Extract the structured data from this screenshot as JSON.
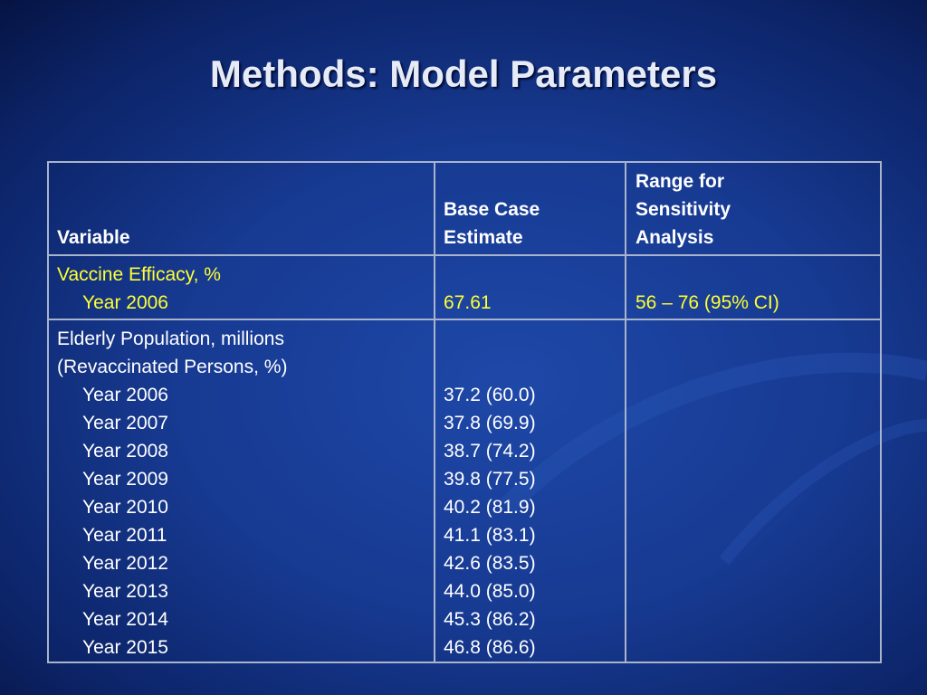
{
  "title": "Methods: Model Parameters",
  "table": {
    "header": [
      {
        "lines": [
          "Variable"
        ]
      },
      {
        "lines": [
          "Base Case",
          "Estimate"
        ]
      },
      {
        "lines": [
          "Range for",
          "Sensitivity",
          "Analysis"
        ]
      }
    ],
    "sections": [
      {
        "heading": [
          "Vaccine Efficacy, %"
        ],
        "rows": [
          {
            "label": "Year 2006",
            "estimate": "67.61",
            "range": "56 – 76 (95% CI)"
          }
        ]
      },
      {
        "heading": [
          "Elderly Population, millions",
          "(Revaccinated Persons, %)"
        ],
        "rows": [
          {
            "label": "Year 2006",
            "estimate": "37.2 (60.0)"
          },
          {
            "label": "Year 2007",
            "estimate": "37.8 (69.9)"
          },
          {
            "label": "Year 2008",
            "estimate": "38.7 (74.2)"
          },
          {
            "label": "Year 2009",
            "estimate": "39.8 (77.5)"
          },
          {
            "label": "Year 2010",
            "estimate": "40.2 (81.9)"
          },
          {
            "label": "Year 2011",
            "estimate": "41.1 (83.1)"
          },
          {
            "label": "Year 2012",
            "estimate": "42.6 (83.5)"
          },
          {
            "label": "Year 2013",
            "estimate": "44.0 (85.0)"
          },
          {
            "label": "Year 2014",
            "estimate": "45.3 (86.2)"
          },
          {
            "label": "Year 2015",
            "estimate": "46.8 (86.6)"
          }
        ]
      }
    ]
  }
}
